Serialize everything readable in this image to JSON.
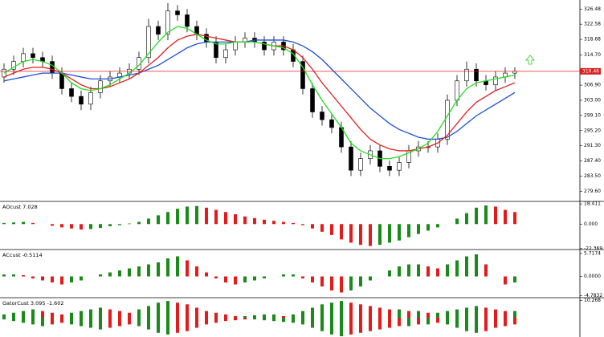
{
  "chart_data": [
    {
      "type": "candlestick",
      "bull_color": "#ffffff",
      "bear_color": "#000000",
      "last_price": 310.46,
      "last_price_color": "#d42020",
      "open": [
        309,
        311,
        313,
        315,
        314,
        313,
        310,
        306,
        304,
        302,
        305,
        308,
        309,
        310,
        311,
        314,
        322,
        320,
        326,
        325,
        322,
        320,
        318,
        314,
        316,
        318,
        319,
        318,
        316,
        318,
        316,
        313,
        306,
        300,
        298,
        296,
        291,
        285,
        288,
        290,
        286,
        285,
        287,
        290,
        291,
        291,
        293,
        303,
        308,
        311,
        308,
        307,
        309,
        310
      ],
      "high": [
        312.5,
        314.5,
        316.5,
        316.5,
        315.5,
        314.5,
        311.5,
        307.5,
        305.5,
        306.5,
        309.5,
        310.5,
        311.5,
        312.5,
        315.5,
        324,
        323.5,
        328,
        327.5,
        326.5,
        323.5,
        321.5,
        319.5,
        317.5,
        319.5,
        320.5,
        320.5,
        319.5,
        319.5,
        319.5,
        317.5,
        314.5,
        307.5,
        301.5,
        299.5,
        297.5,
        292.5,
        289.5,
        291.5,
        291.5,
        287.5,
        288.5,
        291.5,
        292.5,
        292.5,
        294.5,
        304.5,
        309.5,
        313,
        312.5,
        309.5,
        310.5,
        311.5,
        311.5
      ],
      "low": [
        307.5,
        309.5,
        311.5,
        312.5,
        311.5,
        308.5,
        304.5,
        302.5,
        300.5,
        300.5,
        303.5,
        306.5,
        307.5,
        308.5,
        309.5,
        312.5,
        318.5,
        318.5,
        323.5,
        320.5,
        318.5,
        316.5,
        312.5,
        312.5,
        314.5,
        316.5,
        316.5,
        314.5,
        314.5,
        314.5,
        311.5,
        304.5,
        298.5,
        296.5,
        294.5,
        289.5,
        283.5,
        283.5,
        286.5,
        284.5,
        283.5,
        283.5,
        285.5,
        288.5,
        289.5,
        289.5,
        291.5,
        301.5,
        306.5,
        306.5,
        305.5,
        305.5,
        307.5,
        308.5
      ],
      "close": [
        311,
        313,
        315,
        314,
        313,
        310,
        306,
        304,
        302,
        305,
        308,
        309,
        310,
        311,
        314,
        322,
        320,
        326,
        325,
        322,
        320,
        318,
        314,
        316,
        318,
        319,
        318,
        316,
        318,
        316,
        313,
        306,
        300,
        298,
        296,
        291,
        285,
        288,
        290,
        286,
        285,
        287,
        290,
        291,
        291,
        293,
        303,
        308,
        311,
        308,
        307,
        309,
        310,
        310.5
      ],
      "lines": [
        {
          "color": "#1f4fd0",
          "values": [
            308,
            308.5,
            309,
            309.5,
            310,
            310,
            310,
            309.5,
            309,
            308.5,
            308.5,
            308.5,
            309,
            309.5,
            310,
            311,
            312,
            313.5,
            315,
            316.5,
            317.5,
            318,
            318,
            318,
            318,
            318,
            318.5,
            318.5,
            318.5,
            318.5,
            318,
            317,
            315.5,
            313.5,
            311,
            308.5,
            306,
            303.5,
            301,
            299,
            297,
            295.5,
            294.5,
            293.5,
            293,
            293,
            293.5,
            295,
            297,
            299,
            300.5,
            302,
            303.5,
            305
          ]
        },
        {
          "color": "#e02020",
          "values": [
            309,
            310,
            311,
            311.5,
            311.5,
            311,
            310,
            308.5,
            307,
            306,
            306,
            306.5,
            307.5,
            308.5,
            310,
            312,
            314,
            316.5,
            318.5,
            319.5,
            320,
            319.5,
            319,
            318.5,
            318,
            318,
            318,
            317.5,
            317,
            317,
            316,
            314,
            311,
            307.5,
            304.5,
            301.5,
            298.5,
            295.5,
            293,
            291.5,
            290.5,
            290,
            290,
            290.5,
            291,
            292,
            294,
            297,
            300,
            302.5,
            304,
            305.5,
            306.5,
            307.5
          ]
        },
        {
          "color": "#22dd22",
          "values": [
            310,
            311.5,
            313,
            313.5,
            313,
            312,
            310,
            307.5,
            306,
            305.5,
            306,
            307,
            308.5,
            310,
            312,
            315,
            318,
            320.5,
            322,
            321.5,
            320,
            318.5,
            317.5,
            317.5,
            318,
            318,
            318,
            317.5,
            317,
            316.5,
            315,
            311.5,
            307,
            303,
            299.5,
            296,
            292,
            290,
            289,
            288,
            288,
            288.5,
            289.5,
            290.5,
            292,
            295,
            299,
            303,
            306,
            307.5,
            308,
            308.5,
            309,
            309.5
          ]
        }
      ],
      "ylim": [
        277.6,
        328.4
      ],
      "yticks": [
        326.48,
        322.58,
        318.68,
        {
          "value": 314.7,
          "label": "314.70"
        },
        {
          "value": 306.9,
          "label": "306.90"
        },
        {
          "value": 303,
          "label": "303.00"
        },
        {
          "value": 299.1,
          "label": "299.10"
        },
        {
          "value": 295.2,
          "label": "295.20"
        },
        {
          "value": 291.3,
          "label": "291.30"
        },
        {
          "value": 287.4,
          "label": "287.40"
        },
        {
          "value": 283.5,
          "label": "283.50"
        },
        {
          "value": 279.6,
          "label": "279.60"
        }
      ]
    },
    {
      "type": "bar",
      "title": "AOcust 7.028",
      "up_color": "#1a8a1a",
      "down_color": "#e41b1b",
      "values": [
        1,
        1.5,
        2,
        1,
        0,
        -1.5,
        -3,
        -4,
        -5,
        -4.5,
        -3.5,
        -2,
        -1,
        0.5,
        2,
        5,
        8,
        11,
        14,
        16,
        16.5,
        15,
        13,
        11,
        9,
        7,
        5.5,
        4,
        3,
        2,
        1,
        -1,
        -4,
        -7,
        -10,
        -14,
        -17,
        -19,
        -20,
        -19,
        -17,
        -15,
        -12,
        -9,
        -6,
        -3,
        0,
        5,
        10,
        15,
        17,
        16,
        13,
        11
      ],
      "ylim": [
        -24,
        20
      ],
      "yticks": [
        18.411,
        {
          "value": 0,
          "label": "0.000"
        },
        -22.369
      ]
    },
    {
      "type": "bar",
      "title": "ACcust -0.5114",
      "up_color": "#1a8a1a",
      "down_color": "#e41b1b",
      "values": [
        0.5,
        0.5,
        0.3,
        -0.5,
        -1,
        -1.5,
        -2,
        -1.5,
        -1,
        0,
        0.5,
        1,
        1.5,
        2,
        2.5,
        3,
        3.5,
        4.5,
        5,
        4,
        2.5,
        1,
        -0.5,
        -1.5,
        -2,
        -1.5,
        -1,
        -0.5,
        0,
        0.5,
        0.5,
        -0.5,
        -1.5,
        -2.5,
        -3.5,
        -4,
        -3.5,
        -2.5,
        -1,
        0,
        1.5,
        2.5,
        3,
        3,
        2.5,
        2,
        3,
        4,
        5,
        5.5,
        3,
        0,
        -2,
        -1.5
      ],
      "ylim": [
        -5.5,
        6.5
      ],
      "yticks": [
        5.7174,
        {
          "value": 0,
          "label": "0.0000"
        },
        -4.7832
      ]
    },
    {
      "type": "gator",
      "title": "GatorCust 3.095 -1.602",
      "up_color": "#1a8a1a",
      "down_color": "#e41b1b",
      "series": [
        {
          "values": [
            2,
            3,
            4,
            5,
            4,
            3,
            2,
            3,
            4,
            5,
            6,
            5,
            4,
            3,
            5,
            7,
            9,
            10,
            9,
            8,
            6,
            4,
            3,
            2,
            1,
            1,
            1.5,
            2,
            2,
            1,
            2,
            4,
            6,
            8,
            9,
            10,
            9,
            8,
            7,
            6,
            5,
            5,
            4,
            4,
            3,
            3,
            4,
            5,
            6,
            7,
            6,
            5,
            4,
            4
          ]
        },
        {
          "values": [
            -1,
            -2,
            -3,
            -4,
            -5,
            -4,
            -3,
            -4,
            -5,
            -6,
            -7,
            -6,
            -5,
            -4,
            -5,
            -7,
            -9,
            -10,
            -9,
            -8,
            -6,
            -4,
            -3,
            -2,
            -1.5,
            -1,
            -1,
            -1.5,
            -2,
            -2.5,
            -3,
            -4,
            -6,
            -8,
            -10,
            -11,
            -10,
            -9,
            -8,
            -7,
            -6,
            -5,
            -5,
            -4,
            -4,
            -3,
            -4,
            -6,
            -8,
            -9,
            -8,
            -6,
            -5,
            -4
          ]
        }
      ],
      "ylim": [
        -11.5,
        11.5
      ],
      "yticks": [
        10.268
      ]
    }
  ]
}
